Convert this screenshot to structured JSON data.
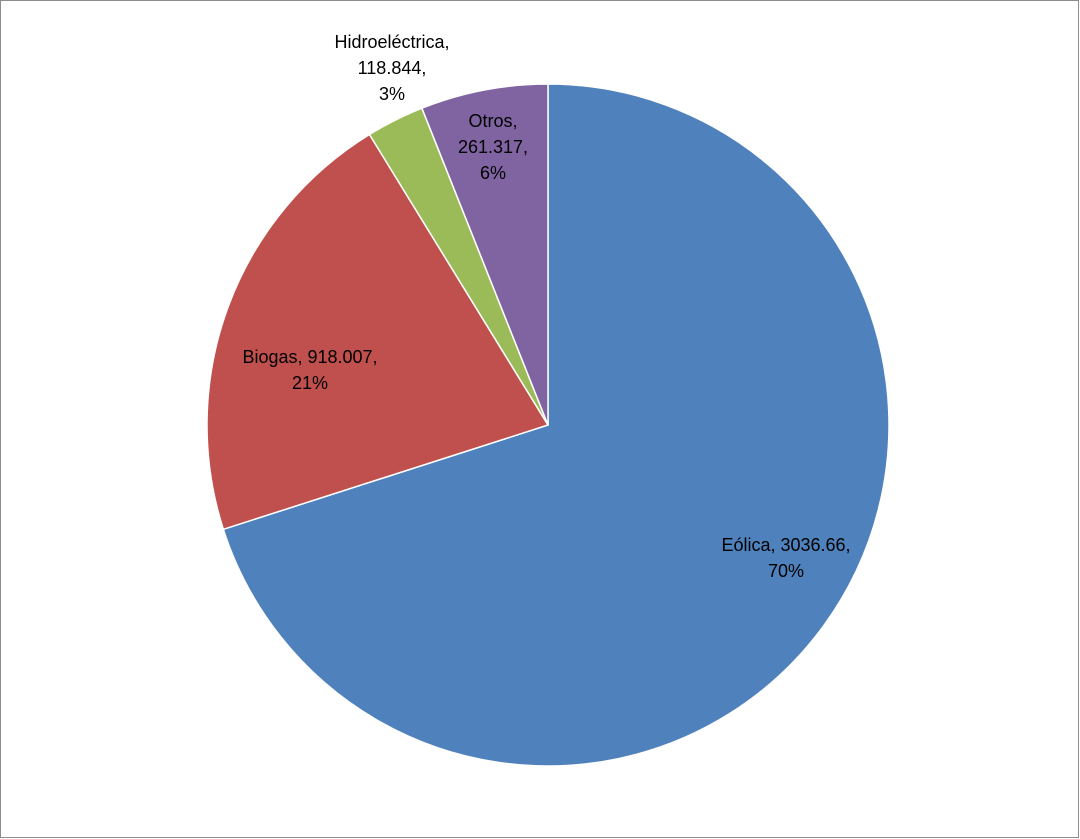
{
  "chart_data": {
    "type": "pie",
    "start_angle_deg": 0,
    "direction": "clockwise",
    "slices": [
      {
        "name": "Eólica",
        "value": 3036.66,
        "value_label": "3036.66",
        "percent_label": "70%",
        "color": "#4f81bd"
      },
      {
        "name": "Biogas",
        "value": 918.007,
        "value_label": "918.007",
        "percent_label": "21%",
        "color": "#c0504d"
      },
      {
        "name": "Hidroeléctrica",
        "value": 118.844,
        "value_label": "118.844",
        "percent_label": "3%",
        "color": "#9bbb59"
      },
      {
        "name": "Otros",
        "value": 261.317,
        "value_label": "261.317",
        "percent_label": "6%",
        "color": "#8064a2"
      }
    ]
  }
}
